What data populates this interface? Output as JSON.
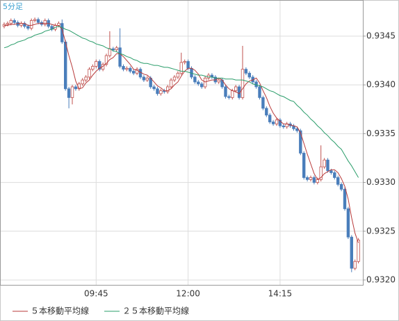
{
  "chart_data": {
    "type": "candlestick",
    "label": "5分足",
    "categories": [
      null,
      null,
      null,
      null,
      null,
      null,
      null,
      null,
      null,
      null,
      null,
      null,
      null,
      null,
      null,
      null,
      null,
      null,
      null,
      null,
      null,
      null,
      null,
      null,
      null,
      null,
      null,
      "09:45",
      null,
      null,
      null,
      null,
      null,
      null,
      null,
      null,
      null,
      null,
      null,
      null,
      null,
      null,
      null,
      null,
      null,
      null,
      null,
      null,
      null,
      null,
      null,
      null,
      null,
      null,
      "12:00",
      null,
      null,
      null,
      null,
      null,
      null,
      null,
      null,
      null,
      null,
      null,
      null,
      null,
      null,
      null,
      null,
      null,
      null,
      null,
      null,
      null,
      null,
      null,
      null,
      null,
      null,
      "14:15",
      null,
      null,
      null,
      null,
      null,
      null,
      null,
      null,
      null,
      null,
      null,
      null,
      null,
      null,
      null,
      null,
      null,
      null,
      null,
      null,
      null,
      null,
      null
    ],
    "open": [
      0.9346,
      0.93462,
      0.93463,
      0.93466,
      0.93464,
      0.93461,
      0.93463,
      0.9346,
      0.93458,
      0.93466,
      0.93467,
      0.93464,
      0.93462,
      0.93466,
      0.9346,
      0.93457,
      0.93461,
      0.93463,
      0.93444,
      0.93396,
      0.93387,
      0.93398,
      0.93396,
      0.93401,
      0.93405,
      0.93408,
      0.93416,
      0.93419,
      0.93424,
      0.93416,
      0.93421,
      0.9343,
      0.93437,
      0.93436,
      0.93438,
      0.93419,
      0.93416,
      0.93417,
      0.93414,
      0.93412,
      0.93416,
      0.93408,
      0.93405,
      0.93407,
      0.93398,
      0.93396,
      0.93391,
      0.93394,
      0.93393,
      0.93398,
      0.93405,
      0.93408,
      0.93412,
      0.93423,
      0.93424,
      0.93417,
      0.93408,
      0.93403,
      0.93401,
      0.93398,
      0.93407,
      0.9341,
      0.93408,
      0.93403,
      0.93405,
      0.93398,
      0.93388,
      0.93387,
      0.93394,
      0.93398,
      0.93387,
      0.93416,
      0.93412,
      0.93408,
      0.93403,
      0.93398,
      0.93387,
      0.93376,
      0.93369,
      0.93362,
      0.9336,
      0.93364,
      0.93358,
      0.93357,
      0.9336,
      0.93358,
      0.93355,
      0.93353,
      0.9333,
      0.93305,
      0.93303,
      0.93305,
      0.933,
      0.93303,
      0.93316,
      0.93323,
      0.93312,
      0.9331,
      0.93305,
      0.93298,
      0.93293,
      0.93273,
      0.93244,
      0.93212,
      0.93219
    ],
    "high": [
      0.93464,
      0.93465,
      0.93468,
      0.93468,
      0.93466,
      0.93465,
      0.93465,
      0.93462,
      0.93468,
      0.93469,
      0.93469,
      0.93466,
      0.93468,
      0.93468,
      0.93462,
      0.93463,
      0.93465,
      0.93467,
      0.93446,
      0.93398,
      0.934,
      0.934,
      0.93403,
      0.93407,
      0.9341,
      0.93418,
      0.93421,
      0.93426,
      0.93426,
      0.93423,
      0.93432,
      0.93455,
      0.93439,
      0.9344,
      0.93458,
      0.93421,
      0.93419,
      0.93419,
      0.93416,
      0.93418,
      0.93418,
      0.9341,
      0.93409,
      0.93409,
      0.934,
      0.93398,
      0.93396,
      0.93396,
      0.934,
      0.93407,
      0.9341,
      0.93414,
      0.93433,
      0.93426,
      0.93426,
      0.93419,
      0.9341,
      0.93405,
      0.93403,
      0.93409,
      0.93412,
      0.93412,
      0.9341,
      0.93407,
      0.93407,
      0.934,
      0.9339,
      0.93396,
      0.934,
      0.934,
      0.9344,
      0.93418,
      0.93414,
      0.9341,
      0.93405,
      0.934,
      0.93389,
      0.93378,
      0.93371,
      0.93364,
      0.93366,
      0.93366,
      0.9336,
      0.93362,
      0.93362,
      0.9336,
      0.93357,
      0.93355,
      0.93332,
      0.93307,
      0.93307,
      0.93307,
      0.93305,
      0.93338,
      0.93325,
      0.93325,
      0.93314,
      0.93312,
      0.93307,
      0.933,
      0.93295,
      0.93275,
      0.93246,
      0.93221,
      0.93243
    ],
    "low": [
      0.93458,
      0.9346,
      0.93461,
      0.93462,
      0.93459,
      0.93459,
      0.93458,
      0.93456,
      0.93456,
      0.93464,
      0.93462,
      0.9346,
      0.9346,
      0.93458,
      0.93455,
      0.93455,
      0.93459,
      0.93442,
      0.93394,
      0.93376,
      0.9338,
      0.93394,
      0.93394,
      0.93399,
      0.93403,
      0.93406,
      0.93414,
      0.93417,
      0.93414,
      0.93414,
      0.93419,
      0.93428,
      0.93434,
      0.93434,
      0.93417,
      0.93414,
      0.93414,
      0.93412,
      0.9341,
      0.9341,
      0.93406,
      0.93403,
      0.93403,
      0.93396,
      0.93394,
      0.93389,
      0.93389,
      0.93391,
      0.93391,
      0.93396,
      0.93403,
      0.93406,
      0.9341,
      0.93421,
      0.93415,
      0.93406,
      0.93401,
      0.93399,
      0.93396,
      0.93396,
      0.93405,
      0.93406,
      0.93401,
      0.93401,
      0.93396,
      0.93386,
      0.93385,
      0.93385,
      0.93392,
      0.93385,
      0.93385,
      0.9341,
      0.93406,
      0.93401,
      0.93396,
      0.93385,
      0.93374,
      0.93367,
      0.9336,
      0.93358,
      0.93358,
      0.93356,
      0.93355,
      0.93355,
      0.93356,
      0.93353,
      0.93351,
      0.93328,
      0.93303,
      0.93301,
      0.93301,
      0.93298,
      0.93298,
      0.93301,
      0.93314,
      0.9331,
      0.93308,
      0.93303,
      0.93296,
      0.93291,
      0.93271,
      0.93242,
      0.93208,
      0.9321,
      0.93217
    ],
    "close": [
      0.93462,
      0.93463,
      0.93466,
      0.93464,
      0.93461,
      0.93463,
      0.9346,
      0.93458,
      0.93466,
      0.93467,
      0.93464,
      0.93462,
      0.93466,
      0.9346,
      0.93457,
      0.93461,
      0.93463,
      0.93444,
      0.93396,
      0.93387,
      0.93398,
      0.93396,
      0.93401,
      0.93405,
      0.93408,
      0.93416,
      0.93419,
      0.93424,
      0.93416,
      0.93421,
      0.9343,
      0.93437,
      0.93436,
      0.93438,
      0.93419,
      0.93416,
      0.93417,
      0.93414,
      0.93412,
      0.93416,
      0.93408,
      0.93405,
      0.93407,
      0.93398,
      0.93396,
      0.93391,
      0.93394,
      0.93393,
      0.93398,
      0.93405,
      0.93408,
      0.93412,
      0.93423,
      0.93424,
      0.93417,
      0.93408,
      0.93403,
      0.93401,
      0.93398,
      0.93407,
      0.9341,
      0.93408,
      0.93403,
      0.93405,
      0.93398,
      0.93388,
      0.93387,
      0.93394,
      0.93398,
      0.93387,
      0.93416,
      0.93412,
      0.93408,
      0.93403,
      0.93398,
      0.93387,
      0.93376,
      0.93369,
      0.93362,
      0.9336,
      0.93364,
      0.93358,
      0.93357,
      0.9336,
      0.93358,
      0.93355,
      0.93353,
      0.9333,
      0.93305,
      0.93303,
      0.93305,
      0.933,
      0.93303,
      0.93316,
      0.93323,
      0.93312,
      0.9331,
      0.93305,
      0.93298,
      0.93293,
      0.93273,
      0.93244,
      0.93212,
      0.93219,
      0.93241
    ],
    "up_color": "#c0504d",
    "down_color": "#4a7ebb",
    "series": [
      {
        "name": "５本移動平均線",
        "color": "#b83a3a",
        "values": [
          0.93461,
          0.93461,
          0.93462,
          0.93462,
          0.93463,
          0.93463,
          0.93463,
          0.93461,
          0.93461,
          0.93462,
          0.93463,
          0.93463,
          0.93463,
          0.93463,
          0.93462,
          0.93461,
          0.93461,
          0.93457,
          0.93444,
          0.9343,
          0.93418,
          0.93404,
          0.93396,
          0.93397,
          0.93402,
          0.93405,
          0.9341,
          0.93414,
          0.93417,
          0.93419,
          0.93422,
          0.93426,
          0.93428,
          0.93432,
          0.93432,
          0.93429,
          0.93425,
          0.93421,
          0.93416,
          0.93415,
          0.93413,
          0.93411,
          0.9341,
          0.93407,
          0.93403,
          0.93399,
          0.93397,
          0.93394,
          0.93394,
          0.93396,
          0.934,
          0.93403,
          0.93409,
          0.93414,
          0.93417,
          0.93417,
          0.93415,
          0.93411,
          0.93405,
          0.93403,
          0.93404,
          0.93405,
          0.93405,
          0.93407,
          0.93405,
          0.934,
          0.93396,
          0.93394,
          0.93393,
          0.93391,
          0.93396,
          0.93401,
          0.93404,
          0.93405,
          0.93407,
          0.93402,
          0.93394,
          0.93387,
          0.93378,
          0.93371,
          0.93366,
          0.93363,
          0.9336,
          0.9336,
          0.93359,
          0.93358,
          0.93357,
          0.93351,
          0.9334,
          0.93329,
          0.93319,
          0.93309,
          0.93303,
          0.93305,
          0.93309,
          0.93311,
          0.93313,
          0.93313,
          0.9331,
          0.93304,
          0.93296,
          0.93283,
          0.93264,
          0.93248,
          0.93238
        ]
      },
      {
        "name": "２５本移動平均線",
        "color": "#2a9d6a",
        "values": [
          0.93438,
          0.93439,
          0.93441,
          0.93442,
          0.93444,
          0.93445,
          0.93446,
          0.93448,
          0.93449,
          0.93451,
          0.93452,
          0.93453,
          0.93455,
          0.93456,
          0.93457,
          0.93459,
          0.9346,
          0.93459,
          0.93457,
          0.93456,
          0.93454,
          0.93452,
          0.9345,
          0.93448,
          0.93447,
          0.93445,
          0.93444,
          0.93442,
          0.93441,
          0.9344,
          0.93438,
          0.93437,
          0.93435,
          0.93434,
          0.93432,
          0.93431,
          0.93429,
          0.93428,
          0.93426,
          0.93425,
          0.93423,
          0.93422,
          0.93422,
          0.93421,
          0.9342,
          0.9342,
          0.93419,
          0.93418,
          0.93418,
          0.93417,
          0.93416,
          0.93415,
          0.93414,
          0.93414,
          0.93413,
          0.93412,
          0.93411,
          0.9341,
          0.9341,
          0.93409,
          0.93408,
          0.93408,
          0.93407,
          0.93407,
          0.93407,
          0.93406,
          0.93406,
          0.93406,
          0.93405,
          0.93405,
          0.93405,
          0.93404,
          0.93403,
          0.93401,
          0.934,
          0.93399,
          0.93398,
          0.93396,
          0.93394,
          0.93393,
          0.93391,
          0.93389,
          0.93388,
          0.93386,
          0.93384,
          0.93383,
          0.93379,
          0.93376,
          0.93372,
          0.93369,
          0.93365,
          0.93362,
          0.93358,
          0.93355,
          0.93351,
          0.93348,
          0.93344,
          0.93341,
          0.93337,
          0.93334,
          0.93328,
          0.93322,
          0.93317,
          0.93311,
          0.93305
        ]
      }
    ],
    "ylim": [
      0.93195,
      0.93487
    ],
    "yticks": [
      {
        "value": 0.932,
        "label": "0.9320"
      },
      0.9325,
      {
        "value": 0.933,
        "label": "0.9330"
      },
      0.9335,
      {
        "value": 0.934,
        "label": "0.9340"
      },
      0.9345
    ],
    "grid": true
  }
}
